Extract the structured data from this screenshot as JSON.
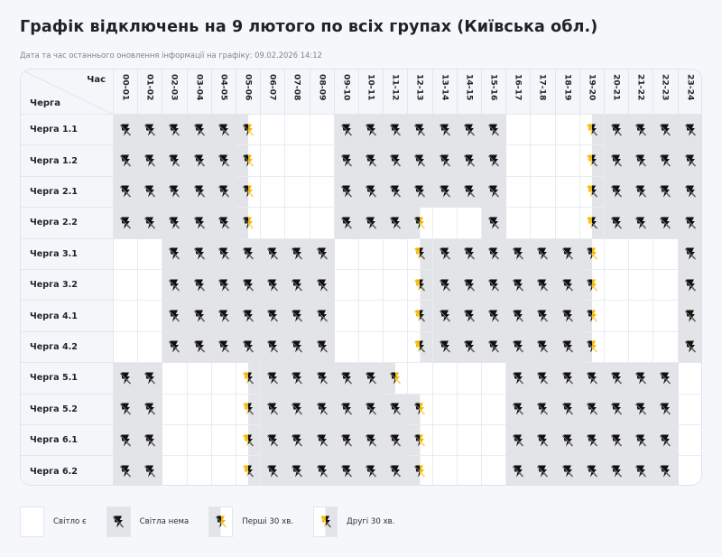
{
  "page": {
    "title": "Графік відключень на 9 лютого по всіх групах (Київська обл.)",
    "updated_text": "Дата та час останнього оновлення інформації на графіку: 09.02.2026 14:12"
  },
  "table": {
    "corner_hour_label": "Час",
    "corner_queue_label": "Черга",
    "hours": [
      "00-01",
      "01-02",
      "02-03",
      "03-04",
      "04-05",
      "05-06",
      "06-07",
      "07-08",
      "08-09",
      "09-10",
      "10-11",
      "11-12",
      "12-13",
      "13-14",
      "14-15",
      "15-16",
      "16-17",
      "17-18",
      "18-19",
      "19-20",
      "20-21",
      "21-22",
      "22-23",
      "23-24"
    ],
    "state_legend": {
      "on": "light available",
      "off": "no light",
      "first": "first 30 min off",
      "second": "second 30 min off"
    },
    "rows": [
      {
        "label": "Черга 1.1",
        "states": [
          "off",
          "off",
          "off",
          "off",
          "off",
          "first",
          "on",
          "on",
          "on",
          "off",
          "off",
          "off",
          "off",
          "off",
          "off",
          "off",
          "on",
          "on",
          "on",
          "second",
          "off",
          "off",
          "off",
          "off"
        ]
      },
      {
        "label": "Черга 1.2",
        "states": [
          "off",
          "off",
          "off",
          "off",
          "off",
          "first",
          "on",
          "on",
          "on",
          "off",
          "off",
          "off",
          "off",
          "off",
          "off",
          "off",
          "on",
          "on",
          "on",
          "second",
          "off",
          "off",
          "off",
          "off"
        ]
      },
      {
        "label": "Черга 2.1",
        "states": [
          "off",
          "off",
          "off",
          "off",
          "off",
          "first",
          "on",
          "on",
          "on",
          "off",
          "off",
          "off",
          "off",
          "off",
          "off",
          "off",
          "on",
          "on",
          "on",
          "second",
          "off",
          "off",
          "off",
          "off"
        ]
      },
      {
        "label": "Черга 2.2",
        "states": [
          "off",
          "off",
          "off",
          "off",
          "off",
          "first",
          "on",
          "on",
          "on",
          "off",
          "off",
          "off",
          "first",
          "on",
          "on",
          "off",
          "on",
          "on",
          "on",
          "second",
          "off",
          "off",
          "off",
          "off"
        ]
      },
      {
        "label": "Черга 3.1",
        "states": [
          "on",
          "on",
          "off",
          "off",
          "off",
          "off",
          "off",
          "off",
          "off",
          "on",
          "on",
          "on",
          "second",
          "off",
          "off",
          "off",
          "off",
          "off",
          "off",
          "first",
          "on",
          "on",
          "on",
          "off"
        ]
      },
      {
        "label": "Черга 3.2",
        "states": [
          "on",
          "on",
          "off",
          "off",
          "off",
          "off",
          "off",
          "off",
          "off",
          "on",
          "on",
          "on",
          "second",
          "off",
          "off",
          "off",
          "off",
          "off",
          "off",
          "first",
          "on",
          "on",
          "on",
          "off"
        ]
      },
      {
        "label": "Черга 4.1",
        "states": [
          "on",
          "on",
          "off",
          "off",
          "off",
          "off",
          "off",
          "off",
          "off",
          "on",
          "on",
          "on",
          "second",
          "off",
          "off",
          "off",
          "off",
          "off",
          "off",
          "first",
          "on",
          "on",
          "on",
          "off"
        ]
      },
      {
        "label": "Черга 4.2",
        "states": [
          "on",
          "on",
          "off",
          "off",
          "off",
          "off",
          "off",
          "off",
          "off",
          "on",
          "on",
          "on",
          "second",
          "off",
          "off",
          "off",
          "off",
          "off",
          "off",
          "first",
          "on",
          "on",
          "on",
          "off"
        ]
      },
      {
        "label": "Черга 5.1",
        "states": [
          "off",
          "off",
          "on",
          "on",
          "on",
          "second",
          "off",
          "off",
          "off",
          "off",
          "off",
          "first",
          "on",
          "on",
          "on",
          "on",
          "off",
          "off",
          "off",
          "off",
          "off",
          "off",
          "off",
          "on"
        ]
      },
      {
        "label": "Черга 5.2",
        "states": [
          "off",
          "off",
          "on",
          "on",
          "on",
          "second",
          "off",
          "off",
          "off",
          "off",
          "off",
          "off",
          "first",
          "on",
          "on",
          "on",
          "off",
          "off",
          "off",
          "off",
          "off",
          "off",
          "off",
          "on"
        ]
      },
      {
        "label": "Черга 6.1",
        "states": [
          "off",
          "off",
          "on",
          "on",
          "on",
          "second",
          "off",
          "off",
          "off",
          "off",
          "off",
          "off",
          "first",
          "on",
          "on",
          "on",
          "off",
          "off",
          "off",
          "off",
          "off",
          "off",
          "off",
          "on"
        ]
      },
      {
        "label": "Черга 6.2",
        "states": [
          "off",
          "off",
          "on",
          "on",
          "on",
          "second",
          "off",
          "off",
          "off",
          "off",
          "off",
          "off",
          "first",
          "on",
          "on",
          "on",
          "off",
          "off",
          "off",
          "off",
          "off",
          "off",
          "off",
          "on"
        ]
      }
    ]
  },
  "legend": [
    {
      "key": "on",
      "label": "Світло є"
    },
    {
      "key": "off",
      "label": "Світла нема"
    },
    {
      "key": "first",
      "label": "Перші 30 хв."
    },
    {
      "key": "second",
      "label": "Другі 30 хв."
    }
  ],
  "colors": {
    "off_bg": "#e3e4e7",
    "on_bg": "#ffffff",
    "icon_black": "#111111",
    "icon_yellow": "#f2b705",
    "header_bg": "#f4f6fa"
  }
}
